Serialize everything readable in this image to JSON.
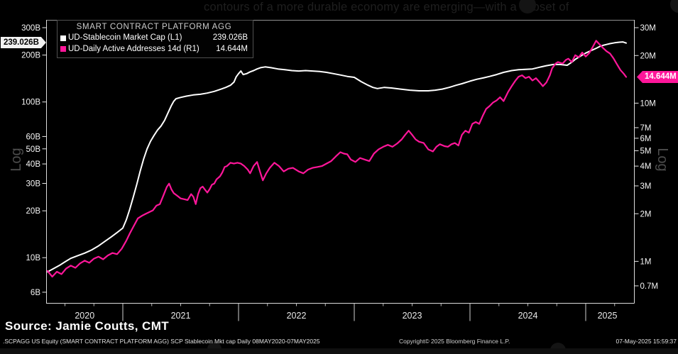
{
  "window": {
    "top_overlay_text": "contours of a more durable economy are emerging—with a subset of"
  },
  "legend": {
    "title": "SMART CONTRACT PLATFORM AGG",
    "rows": [
      {
        "label": "UD-Stablecoin Market Cap  (L1)",
        "value": "239.026B"
      },
      {
        "label": "UD-Daily Active Addresses 14d  (R1)",
        "value": "14.644M"
      }
    ]
  },
  "value_tags": {
    "left": "239.026B",
    "right": "14.644M"
  },
  "axes": {
    "left_scale_label": "Log",
    "right_scale_label": "Log"
  },
  "footer": {
    "source": "Source: Jamie Coutts, CMT",
    "ticker_line": ".SCPAGG US Equity (SMART CONTRACT PLATFORM AGG) SCP Stablecoin Mkt cap  Daily 08MAY2020-07MAY2025",
    "copyright": "Copyright© 2025 Bloomberg Finance L.P.",
    "timestamp": "07-May-2025 15:59:37"
  },
  "chart_data": {
    "type": "line",
    "title": "SMART CONTRACT PLATFORM AGG",
    "grid": false,
    "legend_position": "top-left",
    "x_axis": {
      "unit": "year",
      "years": [
        "2020",
        "2021",
        "2022",
        "2023",
        "2024",
        "2025"
      ],
      "range_decimal_years": [
        2020.35,
        2025.35
      ],
      "date_range": "08MAY2020-07MAY2025",
      "minor_tick_interval_years": 0.25
    },
    "left_axis": {
      "scale": "log",
      "unit": "USD billions",
      "ticks": [
        "300B",
        "200B",
        "100B",
        "60B",
        "50B",
        "40B",
        "30B",
        "20B",
        "10B",
        "6B"
      ],
      "current_value_label": "239.026B"
    },
    "right_axis": {
      "scale": "log",
      "unit": "addresses millions",
      "ticks": [
        "30M",
        "20M",
        "10M",
        "7M",
        "6M",
        "5M",
        "4M",
        "3M",
        "2M",
        "1M",
        "0.7M"
      ],
      "current_value_label": "14.644M"
    },
    "series": [
      {
        "name": "UD-Stablecoin Market Cap (L1)",
        "axis": "left",
        "unit": "B USD",
        "color": "#ffffff",
        "last_value": 239.026,
        "points": [
          [
            2020.35,
            8.1
          ],
          [
            2020.4,
            8.5
          ],
          [
            2020.45,
            8.9
          ],
          [
            2020.5,
            9.4
          ],
          [
            2020.55,
            9.9
          ],
          [
            2020.61,
            10.3
          ],
          [
            2020.67,
            10.7
          ],
          [
            2020.73,
            11.2
          ],
          [
            2020.79,
            11.9
          ],
          [
            2020.85,
            12.8
          ],
          [
            2020.9,
            13.6
          ],
          [
            2020.95,
            14.5
          ],
          [
            2021.0,
            15.5
          ],
          [
            2021.03,
            17.5
          ],
          [
            2021.06,
            20.5
          ],
          [
            2021.09,
            24.5
          ],
          [
            2021.12,
            29.5
          ],
          [
            2021.15,
            36
          ],
          [
            2021.18,
            43
          ],
          [
            2021.21,
            50
          ],
          [
            2021.24,
            56
          ],
          [
            2021.27,
            61
          ],
          [
            2021.3,
            66
          ],
          [
            2021.33,
            70
          ],
          [
            2021.36,
            76
          ],
          [
            2021.39,
            85
          ],
          [
            2021.42,
            95
          ],
          [
            2021.44,
            101
          ],
          [
            2021.46,
            105
          ],
          [
            2021.5,
            107
          ],
          [
            2021.55,
            109
          ],
          [
            2021.61,
            111
          ],
          [
            2021.67,
            112
          ],
          [
            2021.73,
            114
          ],
          [
            2021.79,
            117
          ],
          [
            2021.85,
            121
          ],
          [
            2021.89,
            124
          ],
          [
            2021.93,
            128
          ],
          [
            2021.96,
            134
          ],
          [
            2021.98,
            145
          ],
          [
            2022.0,
            152
          ],
          [
            2022.02,
            158
          ],
          [
            2022.04,
            150
          ],
          [
            2022.07,
            152
          ],
          [
            2022.1,
            156
          ],
          [
            2022.13,
            159
          ],
          [
            2022.16,
            163
          ],
          [
            2022.19,
            166
          ],
          [
            2022.23,
            168
          ],
          [
            2022.28,
            166
          ],
          [
            2022.34,
            163
          ],
          [
            2022.4,
            161
          ],
          [
            2022.46,
            159
          ],
          [
            2022.52,
            158
          ],
          [
            2022.58,
            159
          ],
          [
            2022.64,
            158
          ],
          [
            2022.7,
            157
          ],
          [
            2022.76,
            155
          ],
          [
            2022.82,
            152
          ],
          [
            2022.88,
            149
          ],
          [
            2022.94,
            146
          ],
          [
            2023.0,
            144
          ],
          [
            2023.06,
            135
          ],
          [
            2023.12,
            128
          ],
          [
            2023.16,
            124
          ],
          [
            2023.2,
            122
          ],
          [
            2023.26,
            124
          ],
          [
            2023.32,
            123
          ],
          [
            2023.4,
            121
          ],
          [
            2023.48,
            119
          ],
          [
            2023.56,
            118
          ],
          [
            2023.64,
            118
          ],
          [
            2023.7,
            119
          ],
          [
            2023.76,
            121
          ],
          [
            2023.82,
            124
          ],
          [
            2023.88,
            128
          ],
          [
            2023.93,
            131
          ],
          [
            2024.0,
            136
          ],
          [
            2024.06,
            140
          ],
          [
            2024.12,
            143
          ],
          [
            2024.17,
            146
          ],
          [
            2024.23,
            150
          ],
          [
            2024.29,
            155
          ],
          [
            2024.36,
            159
          ],
          [
            2024.42,
            161
          ],
          [
            2024.48,
            162
          ],
          [
            2024.54,
            163
          ],
          [
            2024.6,
            167
          ],
          [
            2024.66,
            171
          ],
          [
            2024.72,
            174
          ],
          [
            2024.78,
            174
          ],
          [
            2024.84,
            172
          ],
          [
            2024.88,
            180
          ],
          [
            2024.91,
            188
          ],
          [
            2024.94,
            194
          ],
          [
            2024.97,
            200
          ],
          [
            2025.0,
            206
          ],
          [
            2025.03,
            211
          ],
          [
            2025.06,
            216
          ],
          [
            2025.09,
            221
          ],
          [
            2025.12,
            227
          ],
          [
            2025.15,
            231
          ],
          [
            2025.18,
            234
          ],
          [
            2025.21,
            237
          ],
          [
            2025.25,
            240
          ],
          [
            2025.29,
            242
          ],
          [
            2025.32,
            243
          ],
          [
            2025.35,
            239.026
          ]
        ]
      },
      {
        "name": "UD-Daily Active Addresses 14d (R1)",
        "axis": "right",
        "unit": "M addresses",
        "color": "#ff169a",
        "last_value": 14.644,
        "points": [
          [
            2020.35,
            0.87
          ],
          [
            2020.39,
            0.8
          ],
          [
            2020.43,
            0.86
          ],
          [
            2020.47,
            0.83
          ],
          [
            2020.51,
            0.9
          ],
          [
            2020.55,
            0.94
          ],
          [
            2020.59,
            0.91
          ],
          [
            2020.63,
            0.97
          ],
          [
            2020.67,
            1.01
          ],
          [
            2020.71,
            0.98
          ],
          [
            2020.75,
            1.04
          ],
          [
            2020.79,
            1.07
          ],
          [
            2020.83,
            1.03
          ],
          [
            2020.87,
            1.09
          ],
          [
            2020.91,
            1.13
          ],
          [
            2020.95,
            1.11
          ],
          [
            2020.99,
            1.2
          ],
          [
            2021.03,
            1.35
          ],
          [
            2021.06,
            1.5
          ],
          [
            2021.09,
            1.65
          ],
          [
            2021.13,
            1.87
          ],
          [
            2021.17,
            1.95
          ],
          [
            2021.2,
            2.0
          ],
          [
            2021.23,
            2.05
          ],
          [
            2021.26,
            2.1
          ],
          [
            2021.29,
            2.25
          ],
          [
            2021.32,
            2.3
          ],
          [
            2021.35,
            2.6
          ],
          [
            2021.38,
            2.95
          ],
          [
            2021.4,
            3.1
          ],
          [
            2021.42,
            2.85
          ],
          [
            2021.44,
            2.7
          ],
          [
            2021.47,
            2.6
          ],
          [
            2021.5,
            2.5
          ],
          [
            2021.53,
            2.47
          ],
          [
            2021.56,
            2.44
          ],
          [
            2021.59,
            2.66
          ],
          [
            2021.61,
            2.56
          ],
          [
            2021.63,
            2.3
          ],
          [
            2021.65,
            2.66
          ],
          [
            2021.67,
            2.9
          ],
          [
            2021.69,
            2.97
          ],
          [
            2021.71,
            2.84
          ],
          [
            2021.73,
            2.72
          ],
          [
            2021.75,
            2.86
          ],
          [
            2021.77,
            3.05
          ],
          [
            2021.79,
            3.1
          ],
          [
            2021.81,
            3.3
          ],
          [
            2021.84,
            3.45
          ],
          [
            2021.86,
            3.65
          ],
          [
            2021.88,
            3.95
          ],
          [
            2021.9,
            4.0
          ],
          [
            2021.93,
            4.2
          ],
          [
            2021.96,
            4.15
          ],
          [
            2021.99,
            4.2
          ],
          [
            2022.02,
            4.15
          ],
          [
            2022.05,
            4.0
          ],
          [
            2022.08,
            3.8
          ],
          [
            2022.1,
            3.6
          ],
          [
            2022.13,
            4.0
          ],
          [
            2022.16,
            4.25
          ],
          [
            2022.19,
            3.6
          ],
          [
            2022.21,
            3.25
          ],
          [
            2022.24,
            3.6
          ],
          [
            2022.27,
            3.9
          ],
          [
            2022.31,
            4.2
          ],
          [
            2022.35,
            4.0
          ],
          [
            2022.39,
            3.7
          ],
          [
            2022.43,
            3.85
          ],
          [
            2022.47,
            3.9
          ],
          [
            2022.52,
            3.7
          ],
          [
            2022.56,
            3.6
          ],
          [
            2022.6,
            3.8
          ],
          [
            2022.64,
            3.9
          ],
          [
            2022.68,
            3.95
          ],
          [
            2022.72,
            4.0
          ],
          [
            2022.76,
            4.15
          ],
          [
            2022.8,
            4.3
          ],
          [
            2022.84,
            4.6
          ],
          [
            2022.88,
            4.9
          ],
          [
            2022.91,
            4.8
          ],
          [
            2022.94,
            4.75
          ],
          [
            2022.97,
            4.4
          ],
          [
            2023.01,
            4.25
          ],
          [
            2023.05,
            4.5
          ],
          [
            2023.09,
            4.4
          ],
          [
            2023.13,
            4.3
          ],
          [
            2023.17,
            4.8
          ],
          [
            2023.21,
            5.1
          ],
          [
            2023.25,
            5.3
          ],
          [
            2023.29,
            5.45
          ],
          [
            2023.33,
            5.3
          ],
          [
            2023.37,
            5.55
          ],
          [
            2023.41,
            5.9
          ],
          [
            2023.44,
            6.3
          ],
          [
            2023.47,
            6.7
          ],
          [
            2023.5,
            6.3
          ],
          [
            2023.53,
            5.9
          ],
          [
            2023.56,
            5.7
          ],
          [
            2023.6,
            5.6
          ],
          [
            2023.64,
            5.1
          ],
          [
            2023.68,
            4.95
          ],
          [
            2023.71,
            5.3
          ],
          [
            2023.74,
            5.5
          ],
          [
            2023.78,
            5.35
          ],
          [
            2023.81,
            5.3
          ],
          [
            2023.84,
            5.5
          ],
          [
            2023.87,
            5.6
          ],
          [
            2023.9,
            5.4
          ],
          [
            2023.93,
            6.3
          ],
          [
            2023.96,
            6.7
          ],
          [
            2023.99,
            6.5
          ],
          [
            2024.02,
            7.4
          ],
          [
            2024.05,
            7.6
          ],
          [
            2024.08,
            7.4
          ],
          [
            2024.11,
            8.3
          ],
          [
            2024.14,
            9.2
          ],
          [
            2024.17,
            9.6
          ],
          [
            2024.2,
            10.1
          ],
          [
            2024.23,
            10.4
          ],
          [
            2024.26,
            10.9
          ],
          [
            2024.29,
            10.3
          ],
          [
            2024.33,
            11.8
          ],
          [
            2024.36,
            12.8
          ],
          [
            2024.39,
            13.8
          ],
          [
            2024.42,
            14.7
          ],
          [
            2024.45,
            15.0
          ],
          [
            2024.48,
            14.4
          ],
          [
            2024.51,
            14.7
          ],
          [
            2024.54,
            13.9
          ],
          [
            2024.57,
            14.4
          ],
          [
            2024.6,
            13.6
          ],
          [
            2024.63,
            12.8
          ],
          [
            2024.66,
            13.5
          ],
          [
            2024.69,
            15.0
          ],
          [
            2024.71,
            16.6
          ],
          [
            2024.74,
            17.8
          ],
          [
            2024.76,
            18.2
          ],
          [
            2024.8,
            17.8
          ],
          [
            2024.83,
            18.8
          ],
          [
            2024.85,
            19.1
          ],
          [
            2024.88,
            18.2
          ],
          [
            2024.91,
            20.1
          ],
          [
            2024.94,
            19.5
          ],
          [
            2024.97,
            20.9
          ],
          [
            2025.0,
            19.7
          ],
          [
            2025.03,
            20.7
          ],
          [
            2025.06,
            22.6
          ],
          [
            2025.09,
            24.8
          ],
          [
            2025.12,
            23.5
          ],
          [
            2025.15,
            22.3
          ],
          [
            2025.18,
            21.3
          ],
          [
            2025.21,
            20.6
          ],
          [
            2025.24,
            19.2
          ],
          [
            2025.27,
            17.6
          ],
          [
            2025.3,
            16.2
          ],
          [
            2025.33,
            15.3
          ],
          [
            2025.35,
            14.644
          ]
        ]
      }
    ]
  }
}
